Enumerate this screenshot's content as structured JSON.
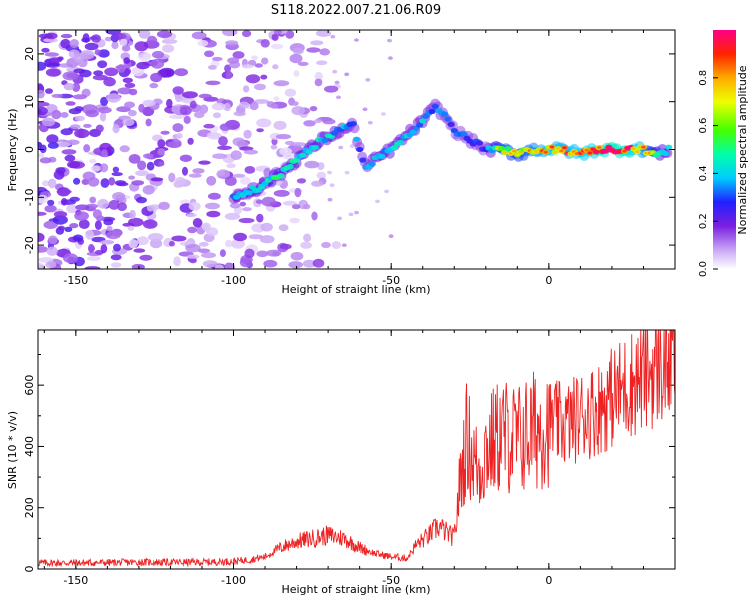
{
  "title": "S118.2022.007.21.06.R09",
  "chart_data": [
    {
      "type": "heatmap",
      "xlabel": "Height of straight line (km)",
      "ylabel": "Frequency (Hz)",
      "xlim": [
        -162,
        40
      ],
      "ylim": [
        -25,
        25
      ],
      "xticks": [
        -150,
        -100,
        -50,
        0
      ],
      "yticks": [
        -20,
        -10,
        0,
        10,
        20
      ],
      "colorbar": {
        "label": "Normalized spectral amplitude",
        "range": [
          0,
          1
        ],
        "ticks": [
          "0.0",
          "0.2",
          "0.4",
          "0.6",
          "0.8"
        ],
        "colormap": "white-purple-blue-cyan-green-yellow-red-pink"
      },
      "ridge": {
        "description_points_x_km": [
          -100,
          -92,
          -85,
          -78,
          -72,
          -66,
          -62,
          -58,
          -55,
          -50,
          -45,
          -40,
          -36,
          -33,
          -30,
          -25,
          -20,
          -15,
          -10,
          -5,
          0,
          5,
          10,
          15,
          20,
          25,
          30,
          35,
          38
        ],
        "frequency_hz": [
          -10,
          -8,
          -5,
          -1,
          2,
          4,
          5,
          -4,
          -2,
          0,
          3,
          6,
          9,
          7,
          4,
          2,
          0,
          0,
          -1,
          0,
          0,
          0,
          -1,
          0,
          0,
          0,
          0,
          -1,
          0
        ],
        "amplitude": [
          0.4,
          0.45,
          0.5,
          0.45,
          0.45,
          0.4,
          0.35,
          0.35,
          0.4,
          0.45,
          0.4,
          0.4,
          0.35,
          0.35,
          0.3,
          0.35,
          0.3,
          0.7,
          0.65,
          0.75,
          0.85,
          0.8,
          0.85,
          0.9,
          1.0,
          0.95,
          0.8,
          0.5,
          0.4
        ]
      }
    },
    {
      "type": "line",
      "xlabel": "Height of straight line (km)",
      "ylabel": "SNR (10 * v/v)",
      "xlim": [
        -162,
        40
      ],
      "ylim": [
        0,
        780
      ],
      "xticks": [
        -150,
        -100,
        -50,
        0
      ],
      "yticks": [
        0,
        200,
        400,
        600
      ],
      "series": [
        {
          "color": "#ee2222",
          "x": [
            -162,
            -150,
            -130,
            -110,
            -100,
            -95,
            -90,
            -85,
            -80,
            -75,
            -70,
            -65,
            -60,
            -55,
            -50,
            -45,
            -42,
            -38,
            -35,
            -30,
            -28,
            -26,
            -24,
            -22,
            -20,
            -15,
            -10,
            -5,
            0,
            5,
            10,
            15,
            20,
            25,
            30,
            35,
            40
          ],
          "values": [
            20,
            20,
            22,
            22,
            25,
            30,
            40,
            70,
            90,
            100,
            110,
            100,
            70,
            50,
            40,
            35,
            80,
            110,
            140,
            100,
            300,
            430,
            360,
            320,
            390,
            440,
            420,
            450,
            480,
            470,
            500,
            520,
            560,
            600,
            630,
            660,
            690
          ]
        }
      ]
    }
  ]
}
